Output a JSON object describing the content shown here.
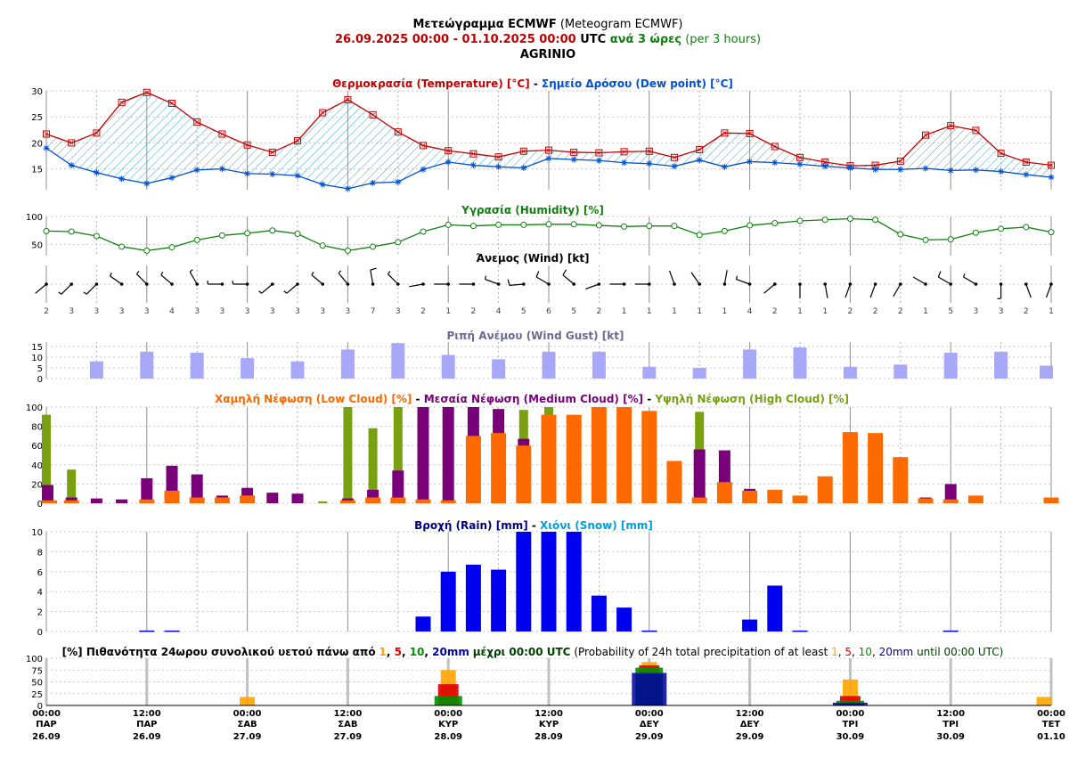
{
  "header": {
    "line1_bold": "Μετεώγραμμα ECMWF",
    "line1_normal": " (Meteogram ECMWF)",
    "line2_range": "26.09.2025 00:00 - 01.10.2025 00:00",
    "line2_utc": " UTC ",
    "line2_every": "ανά 3 ώρες",
    "line2_per": " (per 3 hours)",
    "location": "AGRINIO"
  },
  "colors": {
    "temperature": "#c80000",
    "dewpoint": "#0050d0",
    "humidity": "#108010",
    "gust": "#a8a8f8",
    "gust_title": "#6a6a90",
    "low_cloud": "#ff6a00",
    "medium_cloud": "#7a007a",
    "high_cloud": "#78a010",
    "rain": "#0000f0",
    "snow": "#00a0e0",
    "rain_title": "#000080",
    "p1": "#ffa500",
    "p5": "#e00000",
    "p10": "#009000",
    "p20": "#0000a0",
    "p24_title_green": "#004000"
  },
  "chart_data": [
    {
      "id": "temperature",
      "type": "line",
      "title": "Θερμοκρασία (Temperature) [°C]",
      "title2": "Σημείο Δρόσου (Dew point) [°C]",
      "ylim": [
        11,
        30
      ],
      "yticks": [
        15,
        20,
        25,
        30
      ],
      "x": [
        0,
        3,
        6,
        9,
        12,
        15,
        18,
        21,
        24,
        27,
        30,
        33,
        36,
        39,
        42,
        45,
        48,
        51,
        54,
        57,
        60,
        63,
        66,
        69,
        72,
        75,
        78,
        81,
        84,
        87,
        90,
        93,
        96,
        99,
        102,
        105,
        108,
        111,
        114,
        117,
        120
      ],
      "series": [
        {
          "name": "Θερμοκρασία (Temperature) [°C]",
          "values": [
            21.7,
            20.0,
            21.9,
            27.8,
            29.7,
            27.6,
            24.0,
            21.7,
            19.6,
            18.2,
            20.4,
            25.8,
            28.3,
            25.4,
            22.1,
            19.5,
            18.5,
            17.9,
            17.3,
            18.4,
            18.6,
            18.2,
            18.1,
            18.3,
            18.4,
            17.2,
            18.7,
            21.9,
            21.8,
            19.3,
            17.2,
            16.3,
            15.6,
            15.7,
            16.5,
            21.5,
            23.3,
            22.4,
            18.0,
            16.3,
            15.7
          ]
        },
        {
          "name": "Σημείο Δρόσου (Dew point) [°C]",
          "values": [
            19.0,
            15.7,
            14.3,
            13.1,
            12.2,
            13.3,
            14.8,
            15.0,
            14.1,
            14.0,
            13.7,
            12.0,
            11.2,
            12.3,
            12.5,
            14.9,
            16.3,
            15.7,
            15.4,
            15.2,
            17.0,
            16.8,
            16.6,
            16.2,
            16.0,
            15.5,
            16.7,
            15.4,
            16.4,
            16.2,
            15.9,
            15.5,
            15.2,
            14.9,
            14.9,
            15.1,
            14.7,
            14.8,
            14.5,
            13.9,
            13.4
          ]
        }
      ]
    },
    {
      "id": "humidity",
      "type": "line",
      "title": "Υγρασία (Humidity) [%]",
      "ylim": [
        30,
        100
      ],
      "yticks": [
        50,
        100
      ],
      "x": [
        0,
        3,
        6,
        9,
        12,
        15,
        18,
        21,
        24,
        27,
        30,
        33,
        36,
        39,
        42,
        45,
        48,
        51,
        54,
        57,
        60,
        63,
        66,
        69,
        72,
        75,
        78,
        81,
        84,
        87,
        90,
        93,
        96,
        99,
        102,
        105,
        108,
        111,
        114,
        117,
        120
      ],
      "series": [
        {
          "name": "Υγρασία (Humidity) [%]",
          "values": [
            74,
            73,
            65,
            46,
            39,
            45,
            58,
            66,
            70,
            75,
            69,
            48,
            39,
            46,
            54,
            73,
            85,
            83,
            85,
            85,
            86,
            86,
            84,
            82,
            83,
            83,
            67,
            74,
            84,
            88,
            92,
            94,
            96,
            94,
            68,
            58,
            59,
            71,
            78,
            81,
            72
          ]
        }
      ]
    },
    {
      "id": "wind",
      "type": "wind-barbs",
      "title": "Άνεμος (Wind) [kt]",
      "x": [
        0,
        3,
        6,
        9,
        12,
        15,
        18,
        21,
        24,
        27,
        30,
        33,
        36,
        39,
        42,
        45,
        48,
        51,
        54,
        57,
        60,
        63,
        66,
        69,
        72,
        75,
        78,
        81,
        84,
        87,
        90,
        93,
        96,
        99,
        102,
        105,
        108,
        111,
        114,
        117,
        120
      ],
      "speed_kt": [
        2,
        3,
        3,
        3,
        3,
        4,
        3,
        3,
        3,
        3,
        3,
        3,
        3,
        7,
        3,
        2,
        1,
        2,
        4,
        5,
        6,
        5,
        2,
        1,
        1,
        1,
        1,
        1,
        4,
        2,
        1,
        1,
        2,
        2,
        2,
        1,
        5,
        3,
        3,
        2,
        1
      ],
      "direction_deg": [
        230,
        225,
        225,
        305,
        315,
        310,
        330,
        270,
        270,
        230,
        230,
        310,
        320,
        350,
        315,
        260,
        270,
        270,
        290,
        265,
        300,
        310,
        250,
        270,
        270,
        340,
        325,
        10,
        290,
        230,
        180,
        170,
        200,
        200,
        210,
        300,
        300,
        300,
        180,
        160,
        200
      ]
    },
    {
      "id": "gust",
      "type": "bar",
      "title": "Ριπή Ανέμου (Wind Gust) [kt]",
      "ylim": [
        0,
        17
      ],
      "yticks": [
        0,
        5,
        10,
        15
      ],
      "x": [
        6,
        12,
        18,
        24,
        30,
        36,
        42,
        48,
        54,
        60,
        66,
        72,
        78,
        84,
        90,
        96,
        102,
        108,
        114,
        120
      ],
      "values": [
        8,
        12.5,
        12,
        9.5,
        8,
        13.5,
        16.5,
        11,
        9,
        12.5,
        12.5,
        5.5,
        5,
        13.5,
        14.5,
        5.5,
        6.5,
        12,
        12.5,
        6
      ]
    },
    {
      "id": "cloud",
      "type": "bar",
      "title": "Χαμηλή Νέφωση (Low Cloud) [%]",
      "title2": "Μεσαία Νέφωση (Medium Cloud) [%]",
      "title3": "Υψηλή Νέφωση (High Cloud) [%]",
      "ylim": [
        0,
        100
      ],
      "yticks": [
        0,
        20,
        40,
        60,
        80,
        100
      ],
      "x": [
        0,
        3,
        6,
        9,
        12,
        15,
        18,
        21,
        24,
        27,
        30,
        33,
        36,
        39,
        42,
        45,
        48,
        51,
        54,
        57,
        60,
        63,
        66,
        69,
        72,
        75,
        78,
        81,
        84,
        87,
        90,
        93,
        96,
        99,
        102,
        105,
        108,
        111,
        114,
        117,
        120
      ],
      "series": [
        {
          "name": "Υψηλή Νέφωση (High Cloud) [%]",
          "values": [
            92,
            35,
            0,
            0,
            0,
            0,
            0,
            0,
            0,
            0,
            0,
            2,
            100,
            78,
            100,
            0,
            0,
            0,
            0,
            97,
            100,
            0,
            0,
            0,
            0,
            0,
            95,
            0,
            0,
            0,
            0,
            0,
            0,
            0,
            0,
            0,
            0,
            0,
            0,
            0,
            0
          ]
        },
        {
          "name": "Μεσαία Νέφωση (Medium Cloud) [%]",
          "values": [
            19,
            6,
            5,
            4,
            26,
            39,
            30,
            8,
            16,
            11,
            10,
            0,
            5,
            14,
            34,
            100,
            100,
            100,
            98,
            67,
            0,
            0,
            0,
            0,
            0,
            0,
            56,
            55,
            15,
            0,
            0,
            0,
            0,
            0,
            0,
            6,
            20,
            0,
            0,
            0,
            0
          ]
        },
        {
          "name": "Χαμηλή Νέφωση (Low Cloud) [%]",
          "values": [
            3,
            3,
            0,
            0,
            4,
            13,
            6,
            6,
            8,
            0,
            0,
            0,
            3,
            6,
            6,
            4,
            3,
            70,
            73,
            60,
            92,
            92,
            100,
            100,
            96,
            44,
            6,
            22,
            13,
            14,
            8,
            28,
            74,
            73,
            48,
            5,
            4,
            8,
            0,
            0,
            6
          ]
        }
      ]
    },
    {
      "id": "precip",
      "type": "bar",
      "title": "Βροχή (Rain) [mm]",
      "title2": "Χιόνι (Snow) [mm]",
      "ylim": [
        0,
        10
      ],
      "yticks": [
        0,
        2,
        4,
        6,
        8,
        10
      ],
      "x": [
        0,
        3,
        6,
        9,
        12,
        15,
        18,
        21,
        24,
        27,
        30,
        33,
        36,
        39,
        42,
        45,
        48,
        51,
        54,
        57,
        60,
        63,
        66,
        69,
        72,
        75,
        78,
        81,
        84,
        87,
        90,
        93,
        96,
        99,
        102,
        105,
        108,
        111,
        114,
        117,
        120
      ],
      "series": [
        {
          "name": "Βροχή (Rain) [mm]",
          "values": [
            0,
            0,
            0,
            0,
            0.1,
            0.1,
            0,
            0,
            0,
            0,
            0,
            0,
            0,
            0,
            0,
            1.5,
            6.0,
            6.7,
            6.2,
            10,
            10,
            10,
            3.6,
            2.4,
            0.1,
            0,
            0,
            0,
            1.2,
            4.6,
            0.1,
            0,
            0,
            0,
            0,
            0,
            0.1,
            0,
            0,
            0,
            0
          ]
        },
        {
          "name": "Χιόνι (Snow) [mm]",
          "values": [
            0,
            0,
            0,
            0,
            0,
            0,
            0,
            0,
            0,
            0,
            0,
            0,
            0,
            0,
            0,
            0,
            0,
            0,
            0,
            0,
            0,
            0,
            0,
            0,
            0,
            0,
            0,
            0,
            0,
            0,
            0,
            0,
            0,
            0,
            0,
            0,
            0,
            0,
            0,
            0,
            0
          ]
        }
      ]
    },
    {
      "id": "prob24",
      "type": "bar",
      "title_bold": "[%] Πιθανότητα 24ωρου συνολικού υετού πάνω από",
      "title_bold_until": "μέχρι 00:00 UTC",
      "title_plain": "(Probability of 24h total precipitation of at least",
      "title_plain_until": "until 00:00 UTC)",
      "thresholds": [
        "1",
        "5",
        "10",
        "20mm"
      ],
      "ylim": [
        0,
        100
      ],
      "yticks": [
        0,
        25,
        50,
        75,
        100
      ],
      "x": [
        24,
        48,
        72,
        96,
        120
      ],
      "series": [
        {
          "name": "1",
          "values": [
            18,
            75,
            92,
            55,
            18
          ]
        },
        {
          "name": "5",
          "values": [
            0,
            45,
            85,
            20,
            0
          ]
        },
        {
          "name": "10",
          "values": [
            0,
            20,
            80,
            10,
            0
          ]
        },
        {
          "name": "20mm",
          "values": [
            0,
            0,
            68,
            5,
            0
          ]
        }
      ]
    }
  ],
  "x_axis": {
    "ticks": [
      {
        "time": "00:00",
        "day": "ΠΑΡ",
        "date": "26.09"
      },
      {
        "time": "12:00",
        "day": "ΠΑΡ",
        "date": "26.09"
      },
      {
        "time": "00:00",
        "day": "ΣΑΒ",
        "date": "27.09"
      },
      {
        "time": "12:00",
        "day": "ΣΑΒ",
        "date": "27.09"
      },
      {
        "time": "00:00",
        "day": "ΚΥΡ",
        "date": "28.09"
      },
      {
        "time": "12:00",
        "day": "ΚΥΡ",
        "date": "28.09"
      },
      {
        "time": "00:00",
        "day": "ΔΕΥ",
        "date": "29.09"
      },
      {
        "time": "12:00",
        "day": "ΔΕΥ",
        "date": "29.09"
      },
      {
        "time": "00:00",
        "day": "ΤΡΙ",
        "date": "30.09"
      },
      {
        "time": "12:00",
        "day": "ΤΡΙ",
        "date": "30.09"
      },
      {
        "time": "00:00",
        "day": "ΤΕΤ",
        "date": "01.10"
      }
    ]
  }
}
